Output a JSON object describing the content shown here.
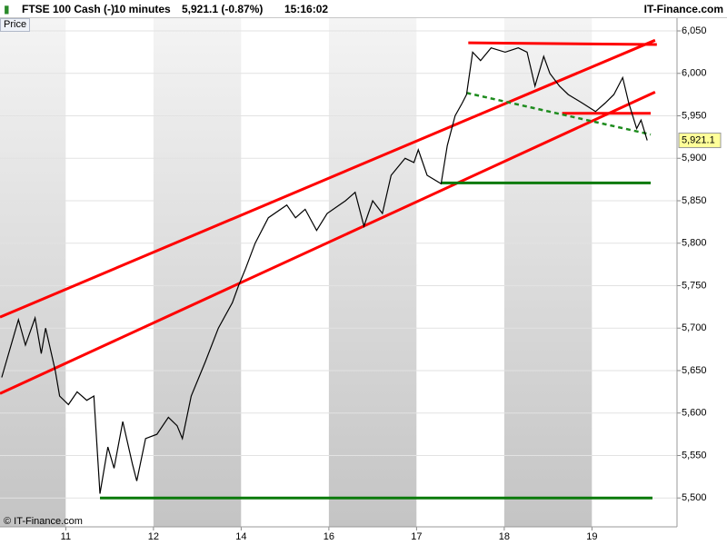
{
  "header": {
    "instrument": "FTSE 100 Cash (-)",
    "interval": "10 minutes",
    "quote": "5,921.1 (-0.87%)",
    "time": "15:16:02",
    "brand": "IT-Finance.com"
  },
  "chart_data": {
    "type": "line",
    "panel_label": "Price",
    "copyright": "© IT-Finance.com",
    "xlim": [
      0.25,
      7.97
    ],
    "xticks": [
      {
        "value": 1,
        "label": "11"
      },
      {
        "value": 2,
        "label": "12"
      },
      {
        "value": 3,
        "label": "14"
      },
      {
        "value": 4,
        "label": "16"
      },
      {
        "value": 5,
        "label": "17"
      },
      {
        "value": 6,
        "label": "18"
      },
      {
        "value": 7,
        "label": "19"
      }
    ],
    "ylim": [
      5466,
      6065
    ],
    "yticks": [
      {
        "value": 5500,
        "label": "5,500"
      },
      {
        "value": 5550,
        "label": "5,550"
      },
      {
        "value": 5600,
        "label": "5,600"
      },
      {
        "value": 5650,
        "label": "5,650"
      },
      {
        "value": 5700,
        "label": "5,700"
      },
      {
        "value": 5750,
        "label": "5,750"
      },
      {
        "value": 5800,
        "label": "5,800"
      },
      {
        "value": 5850,
        "label": "5,850"
      },
      {
        "value": 5900,
        "label": "5,900"
      },
      {
        "value": 5950,
        "label": "5,950"
      },
      {
        "value": 6000,
        "label": "6,000"
      },
      {
        "value": 6050,
        "label": "6,050"
      }
    ],
    "grid": true,
    "last": {
      "value": 5921.1,
      "label": "5,921.1"
    },
    "series": [
      {
        "color": "#000000",
        "x": [
          0.27,
          0.46,
          0.54,
          0.65,
          0.72,
          0.77,
          0.88,
          0.93,
          1.03,
          1.13,
          1.24,
          1.32,
          1.39,
          1.48,
          1.55,
          1.65,
          1.76,
          1.81,
          1.91,
          2.04,
          2.17,
          2.27,
          2.33,
          2.43,
          2.59,
          2.74,
          2.9,
          2.97,
          3.05,
          3.16,
          3.31,
          3.52,
          3.62,
          3.73,
          3.86,
          3.98,
          4.19,
          4.3,
          4.4,
          4.5,
          4.61,
          4.71,
          4.87,
          4.97,
          5.02,
          5.12,
          5.28,
          5.35,
          5.44,
          5.52,
          5.57,
          5.64,
          5.73,
          5.85,
          6.01,
          6.16,
          6.26,
          6.35,
          6.45,
          6.52,
          6.63,
          6.73,
          6.89,
          7.04,
          7.15,
          7.25,
          7.35,
          7.42,
          7.51,
          7.56,
          7.63
        ],
        "values": [
          5642,
          5710,
          5680,
          5712,
          5670,
          5700,
          5650,
          5620,
          5610,
          5625,
          5615,
          5620,
          5505,
          5560,
          5535,
          5590,
          5540,
          5520,
          5570,
          5575,
          5595,
          5585,
          5570,
          5620,
          5660,
          5700,
          5730,
          5750,
          5770,
          5800,
          5830,
          5845,
          5830,
          5840,
          5815,
          5835,
          5850,
          5860,
          5820,
          5850,
          5835,
          5880,
          5900,
          5895,
          5910,
          5880,
          5870,
          5915,
          5950,
          5965,
          5975,
          6025,
          6015,
          6030,
          6025,
          6030,
          6025,
          5985,
          6020,
          6000,
          5985,
          5975,
          5965,
          5955,
          5965,
          5975,
          5995,
          5965,
          5935,
          5945,
          5921
        ]
      }
    ],
    "trendlines": [
      {
        "x": [
          0.25,
          7.72
        ],
        "y": [
          5713,
          6039
        ],
        "color": "#ff0000",
        "dashed": false
      },
      {
        "x": [
          0.25,
          7.72
        ],
        "y": [
          5623,
          5978
        ],
        "color": "#ff0000",
        "dashed": false
      },
      {
        "x": [
          5.59,
          7.74
        ],
        "y": [
          6036,
          6034
        ],
        "color": "#ff0000",
        "dashed": false
      },
      {
        "x": [
          6.66,
          7.67
        ],
        "y": [
          5953,
          5953
        ],
        "color": "#ff0000",
        "dashed": false
      },
      {
        "x": [
          5.57,
          7.67
        ],
        "y": [
          5977,
          5928
        ],
        "color": "#1e8c1e",
        "dashed": true
      },
      {
        "x": [
          5.28,
          7.67
        ],
        "y": [
          5871,
          5871
        ],
        "color": "#0a7a0a",
        "dashed": false
      },
      {
        "x": [
          1.39,
          7.69
        ],
        "y": [
          5500,
          5500
        ],
        "color": "#0a7a0a",
        "dashed": false
      }
    ]
  }
}
